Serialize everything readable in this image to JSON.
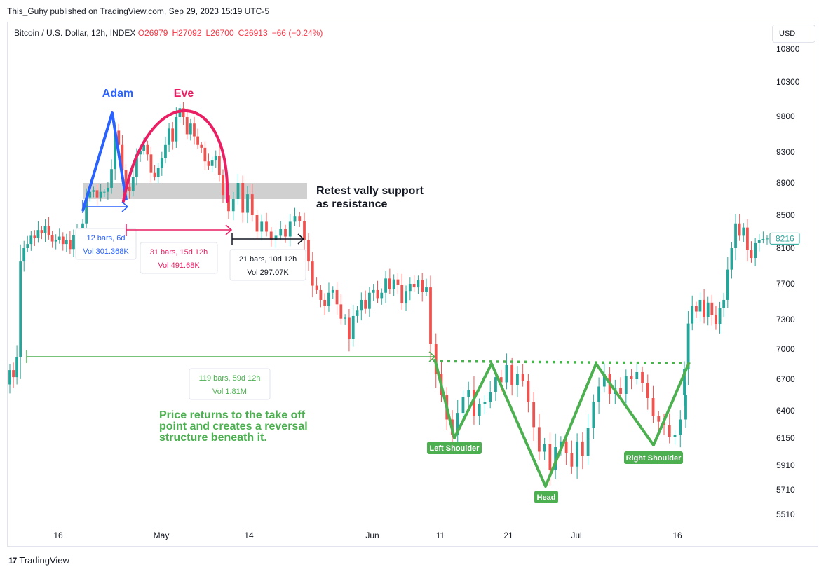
{
  "header": {
    "published_line": "This_Guhy published on TradingView.com, Sep 29, 2023 15:19 UTC-5"
  },
  "legend": {
    "symbol": "Bitcoin / U.S. Dollar, 12h, INDEX",
    "open_label": "O",
    "open": "26979",
    "high_label": "H",
    "high": "27092",
    "low_label": "L",
    "low": "26700",
    "close_label": "C",
    "close": "26913",
    "change": "−66 (−0.24%)"
  },
  "currency_button": "USD",
  "footer": {
    "brand": "TradingView"
  },
  "colors": {
    "up": "#26a69a",
    "down": "#ef5350",
    "adam": "#2962ff",
    "eve": "#e91e63",
    "pattern": "#4caf50",
    "zone": "#c8c8c8",
    "text": "#131722"
  },
  "chart_data": {
    "type": "candlestick",
    "symbol": "Bitcoin / U.S. Dollar, 12h, INDEX",
    "y_axis": {
      "labels": [
        "10800",
        "10300",
        "9800",
        "9300",
        "8900",
        "8500",
        "8100",
        "7700",
        "7300",
        "7000",
        "6700",
        "6400",
        "6150",
        "5910",
        "5710",
        "5510"
      ],
      "current_price_label": "8216",
      "note": "price labels as printed on the chart"
    },
    "x_axis": {
      "labels": [
        "16",
        "May",
        "14",
        "Jun",
        "11",
        "21",
        "Jul",
        "16"
      ]
    },
    "series": [
      {
        "name": "leading",
        "values": [
          6790,
          6720,
          6920,
          7950,
          8100,
          8150,
          8250,
          8220,
          8320,
          8280,
          8370,
          8260,
          8180,
          8200,
          8240,
          8150,
          8200,
          8090,
          8260,
          8320
        ]
      },
      {
        "name": "adam_eve",
        "values": [
          8400,
          8720,
          8790,
          8810,
          8720,
          8790,
          8790,
          8840,
          9080,
          9600,
          9400,
          9070,
          8850,
          8800,
          8980,
          9270,
          9320,
          9400,
          9270,
          9030,
          8980,
          9100,
          9220,
          9400,
          9630,
          9450,
          9790,
          9920,
          9790,
          9550,
          9700,
          9520,
          9400,
          9360,
          9180,
          9120,
          9190,
          9250,
          9000,
          8750
        ]
      },
      {
        "name": "retest",
        "values": [
          8550,
          8700,
          8900,
          8530,
          8760,
          8500,
          8300,
          8420,
          8300,
          8200,
          8250,
          8330,
          8240,
          8420,
          8490,
          8430,
          8200
        ]
      },
      {
        "name": "decline",
        "values": [
          7950,
          7680,
          7630,
          7520,
          7450,
          7600,
          7630,
          7470,
          7310,
          7320,
          7100,
          7340,
          7400,
          7520,
          7420,
          7600,
          7630,
          7540,
          7600,
          7760,
          7640,
          7750,
          7690,
          7480,
          7620,
          7700,
          7660,
          7740,
          7610,
          7660
        ]
      },
      {
        "name": "head_and_shoulders",
        "values": [
          7050,
          6750,
          6550,
          6320,
          6180,
          6380,
          6530,
          6600,
          6350,
          6460,
          6480,
          6580,
          6720,
          6670,
          6840,
          6640,
          6750,
          6680,
          6480,
          6250,
          6030,
          6100,
          5870,
          6070,
          6120,
          6020,
          5900,
          6120,
          5990,
          6240,
          6480,
          6630,
          6750,
          6560,
          6620,
          6560,
          6730,
          6700,
          6770,
          6660,
          6520,
          6350,
          6300,
          6270,
          6160,
          6180,
          6320,
          6550
        ]
      },
      {
        "name": "breakout",
        "values": [
          6800,
          7260,
          7450,
          7390,
          7520,
          7330,
          7490,
          7350,
          7250,
          7430,
          7520,
          7860,
          8100,
          8400,
          8250,
          8350,
          8080,
          7990,
          8160,
          8200,
          8210,
          8216
        ]
      }
    ],
    "annotations": {
      "adam_label": "Adam",
      "eve_label": "Eve",
      "retest_text": [
        "Retest vally support",
        "as resistance"
      ],
      "range_adam": {
        "bars": "12 bars, 6d",
        "vol": "Vol 301.368K"
      },
      "range_eve": {
        "bars": "31 bars, 15d 12h",
        "vol": "Vol 491.68K"
      },
      "range_retest": {
        "bars": "21 bars, 10d 12h",
        "vol": "Vol 297.07K"
      },
      "range_takeoff": {
        "bars": "119 bars, 59d 12h",
        "vol": "Vol 1.81M"
      },
      "note_lines": [
        "Price returns to the take off",
        "point and creates a reversal",
        "structure beneath it."
      ],
      "left_shoulder": "Left Shoulder",
      "head": "Head",
      "right_shoulder": "Right Shoulder"
    },
    "resistance_zone": {
      "from": 8700,
      "to": 8900
    },
    "neckline": {
      "value": 6880
    },
    "takeoff_level": 6920
  }
}
